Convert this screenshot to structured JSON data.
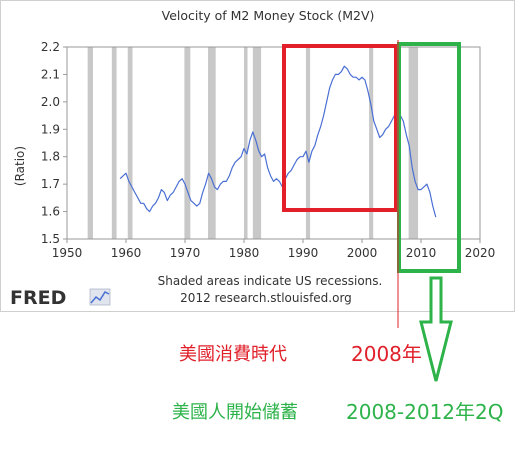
{
  "chart_data": {
    "type": "line",
    "title": "Velocity of M2 Money Stock (M2V)",
    "ylabel": "(Ratio)",
    "xlabel": "",
    "xlim": [
      1950,
      2020
    ],
    "ylim": [
      1.5,
      2.2
    ],
    "x_ticks": [
      1950,
      1960,
      1970,
      1980,
      1990,
      2000,
      2010,
      2020
    ],
    "y_ticks": [
      "1.5",
      "1.6",
      "1.7",
      "1.8",
      "1.9",
      "2.0",
      "2.1",
      "2.2"
    ],
    "grid": false,
    "recessions": [
      [
        1953.5,
        1954.4
      ],
      [
        1957.6,
        1958.4
      ],
      [
        1960.3,
        1961.1
      ],
      [
        1969.9,
        1970.9
      ],
      [
        1973.9,
        1975.2
      ],
      [
        1980.0,
        1980.6
      ],
      [
        1981.5,
        1982.9
      ],
      [
        1990.5,
        1991.2
      ],
      [
        2001.2,
        2001.9
      ],
      [
        2007.9,
        2009.5
      ]
    ],
    "series": [
      {
        "color": "#4a6fd4",
        "x": [
          1959.0,
          1959.5,
          1960.0,
          1960.5,
          1961.0,
          1961.5,
          1962.0,
          1962.5,
          1963.0,
          1963.5,
          1964.0,
          1964.5,
          1965.0,
          1965.5,
          1966.0,
          1966.5,
          1967.0,
          1967.5,
          1968.0,
          1968.5,
          1969.0,
          1969.5,
          1970.0,
          1970.5,
          1971.0,
          1971.5,
          1972.0,
          1972.5,
          1973.0,
          1973.5,
          1974.0,
          1974.5,
          1975.0,
          1975.5,
          1976.0,
          1976.5,
          1977.0,
          1977.5,
          1978.0,
          1978.5,
          1979.0,
          1979.5,
          1980.0,
          1980.5,
          1981.0,
          1981.5,
          1982.0,
          1982.5,
          1983.0,
          1983.5,
          1984.0,
          1984.5,
          1985.0,
          1985.5,
          1986.0,
          1986.5,
          1987.0,
          1987.5,
          1988.0,
          1988.5,
          1989.0,
          1989.5,
          1990.0,
          1990.5,
          1991.0,
          1991.5,
          1992.0,
          1992.5,
          1993.0,
          1993.5,
          1994.0,
          1994.5,
          1995.0,
          1995.5,
          1996.0,
          1996.5,
          1997.0,
          1997.5,
          1998.0,
          1998.5,
          1999.0,
          1999.5,
          2000.0,
          2000.5,
          2001.0,
          2001.5,
          2002.0,
          2002.5,
          2003.0,
          2003.5,
          2004.0,
          2004.5,
          2005.0,
          2005.5,
          2006.0,
          2006.5,
          2007.0,
          2007.5,
          2008.0,
          2008.5,
          2009.0,
          2009.5,
          2010.0,
          2010.5,
          2011.0,
          2011.5,
          2012.0,
          2012.5
        ],
        "values": [
          1.72,
          1.73,
          1.74,
          1.71,
          1.69,
          1.67,
          1.65,
          1.63,
          1.63,
          1.61,
          1.6,
          1.62,
          1.63,
          1.65,
          1.68,
          1.67,
          1.64,
          1.66,
          1.67,
          1.69,
          1.71,
          1.72,
          1.7,
          1.67,
          1.64,
          1.63,
          1.62,
          1.63,
          1.67,
          1.7,
          1.74,
          1.72,
          1.69,
          1.68,
          1.7,
          1.71,
          1.71,
          1.73,
          1.76,
          1.78,
          1.79,
          1.8,
          1.83,
          1.81,
          1.86,
          1.89,
          1.86,
          1.82,
          1.8,
          1.81,
          1.76,
          1.73,
          1.71,
          1.72,
          1.71,
          1.69,
          1.72,
          1.74,
          1.75,
          1.77,
          1.79,
          1.8,
          1.8,
          1.82,
          1.78,
          1.82,
          1.84,
          1.88,
          1.91,
          1.95,
          2.0,
          2.05,
          2.08,
          2.1,
          2.1,
          2.11,
          2.13,
          2.12,
          2.1,
          2.09,
          2.09,
          2.08,
          2.09,
          2.08,
          2.04,
          1.99,
          1.93,
          1.9,
          1.87,
          1.88,
          1.9,
          1.91,
          1.93,
          1.95,
          1.96,
          1.95,
          1.93,
          1.88,
          1.84,
          1.76,
          1.71,
          1.68,
          1.68,
          1.69,
          1.7,
          1.67,
          1.62,
          1.58
        ]
      }
    ]
  },
  "source": {
    "recession_note": "Shaded areas indicate US recessions.",
    "copyright": "2012 research.stlouisfed.org",
    "logo_text": "FRED"
  },
  "annotations": {
    "red_box_color": "#e3202a",
    "green_box_color": "#2db34a",
    "consumption_era": "美國消費時代",
    "year_2008": "2008年",
    "saving_era": "美國人開始儲蓄",
    "saving_period": "2008-2012年2Q"
  }
}
